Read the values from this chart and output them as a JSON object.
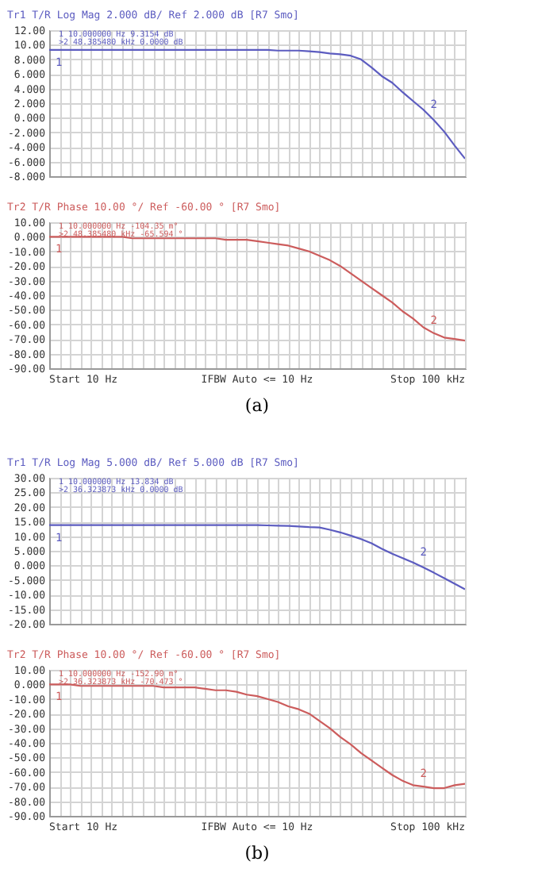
{
  "chart_data": [
    {
      "type": "line",
      "title": "Tr1 T/R Log Mag 2.000 dB/ Ref 2.000 dB [R7 Smo]",
      "grid": true,
      "tick_labels": "y",
      "categories": [
        null,
        null,
        null,
        null,
        null,
        null,
        null,
        null,
        null,
        null,
        null,
        null,
        null,
        null,
        null,
        null,
        null,
        null,
        null,
        null,
        null,
        null,
        null,
        null,
        null,
        null,
        null,
        null,
        null,
        null,
        null,
        null,
        null,
        null,
        null,
        null,
        null,
        null,
        null,
        null,
        null
      ],
      "ylim": [
        -8,
        12
      ],
      "yticks": [
        {
          "value": 12,
          "label": "12.00"
        },
        {
          "value": 10,
          "label": "10.00"
        },
        {
          "value": 8,
          "label": "8.000"
        },
        {
          "value": 6,
          "label": "6.000"
        },
        {
          "value": 4,
          "label": "4.000"
        },
        {
          "value": 2,
          "label": "2.000"
        },
        {
          "value": 0,
          "label": "0.000"
        },
        {
          "value": -2,
          "label": "-2.000"
        },
        {
          "value": -4,
          "label": "-4.000"
        },
        {
          "value": -6,
          "label": "-6.000"
        },
        {
          "value": -8,
          "label": "-8.000"
        }
      ],
      "annotations": [
        "1  10.000000 Hz   9.3154 dB",
        ">2  48.385480 kHz  0.0000 dB",
        {
          "text": "1",
          "y": 9.3
        },
        {
          "text": "2",
          "y": 0
        }
      ],
      "series": [
        {
          "color": "#5c5cc0",
          "values": [
            9.3,
            9.3,
            9.3,
            9.3,
            9.3,
            9.3,
            9.3,
            9.3,
            9.3,
            9.3,
            9.3,
            9.3,
            9.3,
            9.3,
            9.3,
            9.3,
            9.3,
            9.3,
            9.3,
            9.3,
            9.3,
            9.3,
            9.2,
            9.2,
            9.2,
            9.1,
            9.0,
            8.8,
            8.7,
            8.5,
            8.0,
            6.9,
            5.7,
            4.8,
            3.5,
            2.3,
            1.1,
            -0.3,
            -1.9,
            -3.8,
            -5.6
          ]
        }
      ]
    },
    {
      "type": "line",
      "title": "Tr2 T/R Phase 10.00 °/ Ref -60.00 ° [R7 Smo]",
      "grid": true,
      "tick_labels": "y",
      "categories": [
        null,
        null,
        null,
        null,
        null,
        null,
        null,
        null,
        null,
        null,
        null,
        null,
        null,
        null,
        null,
        null,
        null,
        null,
        null,
        null,
        null,
        null,
        null,
        null,
        null,
        null,
        null,
        null,
        null,
        null,
        null,
        null,
        null,
        null,
        null,
        null,
        null,
        null,
        null,
        null,
        null
      ],
      "ylim": [
        -90,
        10
      ],
      "yticks": [
        {
          "value": 10,
          "label": "10.00"
        },
        {
          "value": 0,
          "label": "0.000"
        },
        {
          "value": -10,
          "label": "-10.00"
        },
        {
          "value": -20,
          "label": "-20.00"
        },
        {
          "value": -30,
          "label": "-30.00"
        },
        {
          "value": -40,
          "label": "-40.00"
        },
        {
          "value": -50,
          "label": "-50.00"
        },
        {
          "value": -60,
          "label": "-60.00"
        },
        {
          "value": -70,
          "label": "-70.00"
        },
        {
          "value": -80,
          "label": "-80.00"
        },
        {
          "value": -90,
          "label": "-90.00"
        }
      ],
      "annotations": [
        "1  10.000000 Hz   -104.35 m°",
        ">2  48.385480 kHz  -65.594 °",
        "Start 10 Hz",
        "IFBW Auto <= 10 Hz",
        "Stop 100 kHz",
        "(a)",
        {
          "text": "1",
          "y": 0
        },
        {
          "text": "2",
          "y": -66
        }
      ],
      "series": [
        {
          "color": "#cc5c5c",
          "values": [
            0,
            0,
            0,
            0,
            0,
            0,
            0,
            0,
            -1,
            -1,
            -1,
            -1,
            -1,
            -1,
            -1,
            -1,
            -1,
            -2,
            -2,
            -2,
            -3,
            -4,
            -5,
            -6,
            -8,
            -10,
            -13,
            -16,
            -20,
            -25,
            -30,
            -35,
            -40,
            -45,
            -51,
            -56,
            -62,
            -66,
            -69,
            -70,
            -71
          ]
        }
      ]
    },
    {
      "type": "line",
      "title": "Tr1 T/R Log Mag 5.000 dB/ Ref 5.000 dB [R7 Smo]",
      "grid": true,
      "tick_labels": "y",
      "categories": [
        null,
        null,
        null,
        null,
        null,
        null,
        null,
        null,
        null,
        null,
        null,
        null,
        null,
        null,
        null,
        null,
        null,
        null,
        null,
        null,
        null,
        null,
        null,
        null,
        null,
        null,
        null,
        null,
        null,
        null,
        null,
        null,
        null,
        null,
        null,
        null,
        null,
        null,
        null,
        null,
        null
      ],
      "ylim": [
        -20,
        30
      ],
      "yticks": [
        {
          "value": 30,
          "label": "30.00"
        },
        {
          "value": 25,
          "label": "25.00"
        },
        {
          "value": 20,
          "label": "20.00"
        },
        {
          "value": 15,
          "label": "15.00"
        },
        {
          "value": 10,
          "label": "10.00"
        },
        {
          "value": 5,
          "label": "5.000"
        },
        {
          "value": 0,
          "label": "0.000"
        },
        {
          "value": -5,
          "label": "-5.000"
        },
        {
          "value": -10,
          "label": "-10.00"
        },
        {
          "value": -15,
          "label": "-15.00"
        },
        {
          "value": -20,
          "label": "-20.00"
        }
      ],
      "annotations": [
        "1  10.000000 Hz   13.834 dB",
        ">2  36.323873 kHz  0.0000 dB",
        {
          "text": "1",
          "y": 13.8
        },
        {
          "text": "2",
          "y": 0
        }
      ],
      "series": [
        {
          "color": "#5c5cc0",
          "values": [
            13.8,
            13.8,
            13.8,
            13.8,
            13.8,
            13.8,
            13.8,
            13.8,
            13.8,
            13.8,
            13.8,
            13.8,
            13.8,
            13.8,
            13.8,
            13.8,
            13.8,
            13.8,
            13.8,
            13.8,
            13.8,
            13.7,
            13.6,
            13.5,
            13.3,
            13.1,
            13.0,
            12.2,
            11.3,
            10.2,
            9.0,
            7.6,
            5.7,
            4.0,
            2.5,
            1.0,
            -0.7,
            -2.5,
            -4.4,
            -6.3,
            -8.2
          ]
        }
      ]
    },
    {
      "type": "line",
      "title": "Tr2 T/R Phase 10.00 °/ Ref -60.00 ° [R7 Smo]",
      "grid": true,
      "tick_labels": "y",
      "categories": [
        null,
        null,
        null,
        null,
        null,
        null,
        null,
        null,
        null,
        null,
        null,
        null,
        null,
        null,
        null,
        null,
        null,
        null,
        null,
        null,
        null,
        null,
        null,
        null,
        null,
        null,
        null,
        null,
        null,
        null,
        null,
        null,
        null,
        null,
        null,
        null,
        null,
        null,
        null,
        null,
        null
      ],
      "ylim": [
        -90,
        10
      ],
      "yticks": [
        {
          "value": 10,
          "label": "10.00"
        },
        {
          "value": 0,
          "label": "0.000"
        },
        {
          "value": -10,
          "label": "-10.00"
        },
        {
          "value": -20,
          "label": "-20.00"
        },
        {
          "value": -30,
          "label": "-30.00"
        },
        {
          "value": -40,
          "label": "-40.00"
        },
        {
          "value": -50,
          "label": "-50.00"
        },
        {
          "value": -60,
          "label": "-60.00"
        },
        {
          "value": -70,
          "label": "-70.00"
        },
        {
          "value": -80,
          "label": "-80.00"
        },
        {
          "value": -90,
          "label": "-90.00"
        }
      ],
      "annotations": [
        "1  10.000000 Hz   -152.90 m°",
        ">2  36.323873 kHz  -70.473 °",
        "Start 10 Hz",
        "IFBW Auto <= 10 Hz",
        "Stop 100 kHz",
        "(b)",
        {
          "text": "1",
          "y": 0
        },
        {
          "text": "2",
          "y": -70
        }
      ],
      "series": [
        {
          "color": "#cc5c5c",
          "values": [
            0,
            0,
            0,
            -1,
            -1,
            -1,
            -1,
            -1,
            -1,
            -1,
            -1,
            -2,
            -2,
            -2,
            -2,
            -3,
            -4,
            -4,
            -5,
            -7,
            -8,
            -10,
            -12,
            -15,
            -17,
            -20,
            -25,
            -30,
            -36,
            -41,
            -47,
            -52,
            -57,
            -62,
            -66,
            -69,
            -70,
            -71,
            -71,
            -69,
            -68
          ]
        }
      ]
    }
  ]
}
